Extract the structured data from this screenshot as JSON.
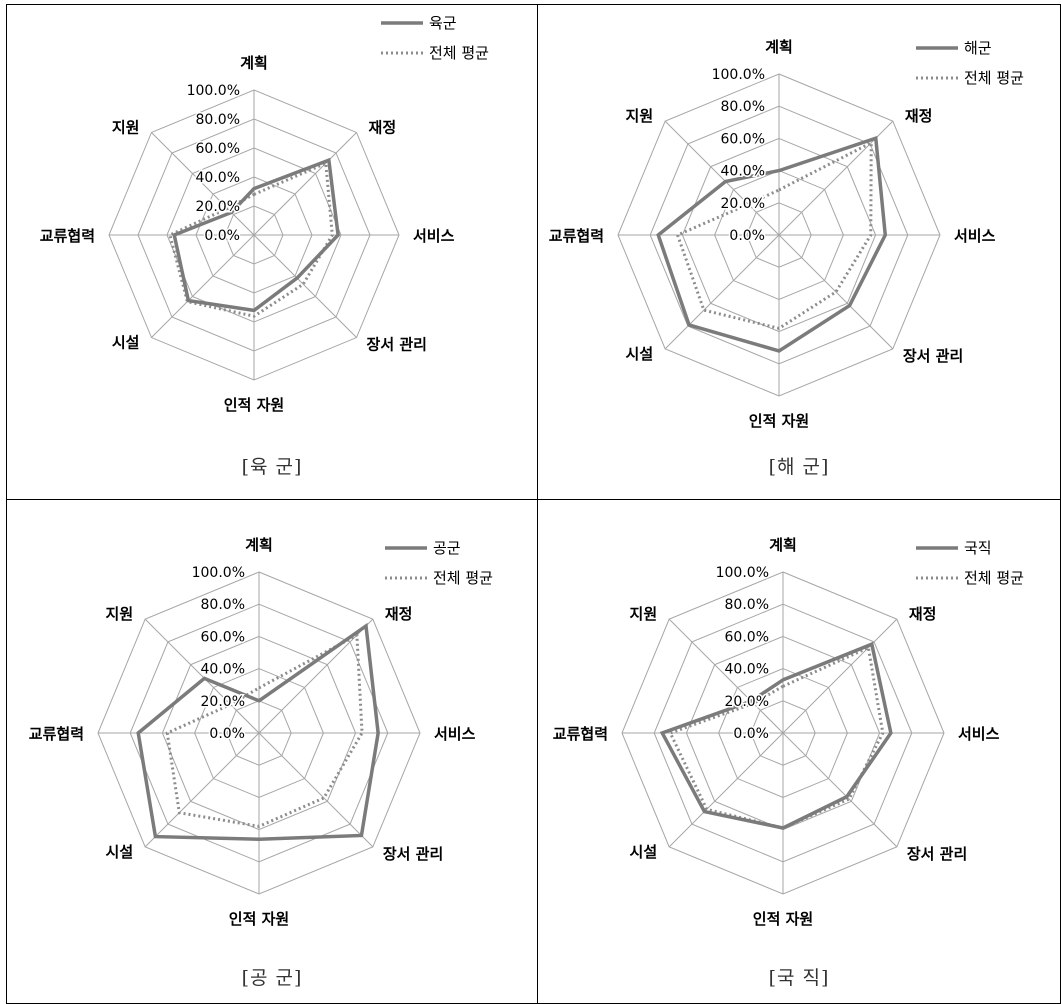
{
  "axes": [
    "계획",
    "재정",
    "서비스",
    "장서 관리",
    "인적 자원",
    "시설",
    "교류협력",
    "지원"
  ],
  "tick_labels": [
    "0.0%",
    "20.0%",
    "40.0%",
    "60.0%",
    "80.0%",
    "100.0%"
  ],
  "colors": {
    "main_series": "#7b7b7b",
    "avg_series": "#8c8c8c",
    "grid": "#a6a6a6"
  },
  "chart_data": [
    {
      "type": "radar",
      "caption": "[육 군]",
      "ylim": [
        0,
        100
      ],
      "series": [
        {
          "name": "육군",
          "values": [
            32,
            73,
            58,
            42,
            52,
            64,
            55,
            22
          ]
        },
        {
          "name": "전체 평균",
          "values": [
            28,
            70,
            54,
            48,
            56,
            65,
            58,
            26
          ]
        }
      ]
    },
    {
      "type": "radar",
      "caption": "[해 군]",
      "ylim": [
        0,
        100
      ],
      "series": [
        {
          "name": "해군",
          "values": [
            40,
            85,
            66,
            62,
            72,
            79,
            75,
            47
          ]
        },
        {
          "name": "전체 평균",
          "values": [
            28,
            81,
            57,
            50,
            58,
            66,
            63,
            27
          ]
        }
      ]
    },
    {
      "type": "radar",
      "caption": "[공 군]",
      "ylim": [
        0,
        100
      ],
      "series": [
        {
          "name": "공군",
          "values": [
            20,
            94,
            74,
            90,
            66,
            91,
            75,
            48
          ]
        },
        {
          "name": "전체 평균",
          "values": [
            28,
            86,
            64,
            57,
            58,
            70,
            57,
            25
          ]
        }
      ]
    },
    {
      "type": "radar",
      "caption": "[국 직]",
      "ylim": [
        0,
        100
      ],
      "series": [
        {
          "name": "국직",
          "values": [
            33,
            78,
            67,
            56,
            59,
            69,
            75,
            28
          ]
        },
        {
          "name": "전체 평균",
          "values": [
            29,
            75,
            62,
            58,
            59,
            67,
            70,
            26
          ]
        }
      ]
    }
  ]
}
